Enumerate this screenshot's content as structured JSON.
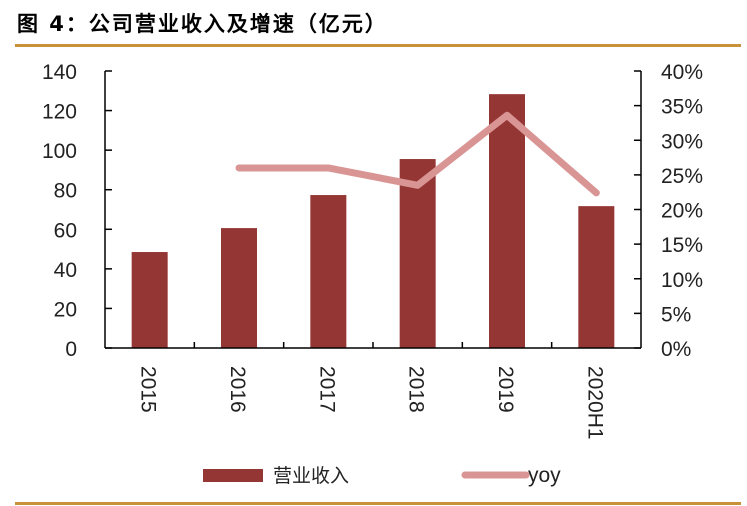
{
  "figure": {
    "title": "图 4：公司营业收入及增速（亿元）",
    "rule_color": "#C8923A"
  },
  "colors": {
    "bar": "#943634",
    "line": "#D99594",
    "axis": "#000000"
  },
  "legend": {
    "bar_label": "营业收入",
    "line_label": "yoy"
  },
  "chart_data": {
    "type": "bar",
    "title": "图 4：公司营业收入及增速（亿元）",
    "categories": [
      "2015",
      "2016",
      "2017",
      "2018",
      "2019",
      "2020H1"
    ],
    "series": [
      {
        "name": "营业收入",
        "type": "bar",
        "axis": "left",
        "values": [
          48.5,
          60.6,
          77.3,
          95.5,
          128.3,
          71.7
        ]
      },
      {
        "name": "yoy",
        "type": "line",
        "axis": "right",
        "values": [
          null,
          0.26,
          0.26,
          0.235,
          0.336,
          0.224
        ]
      }
    ],
    "xlabel": "",
    "ylabel": "",
    "ylim": [
      0,
      140
    ],
    "y2lim": [
      0,
      0.4
    ],
    "yticks": [
      "0",
      "20",
      "40",
      "60",
      "80",
      "100",
      "120",
      "140"
    ],
    "y2ticks": [
      "0%",
      "5%",
      "10%",
      "15%",
      "20%",
      "25%",
      "30%",
      "35%",
      "40%"
    ],
    "grid": false,
    "legend_position": "bottom"
  }
}
